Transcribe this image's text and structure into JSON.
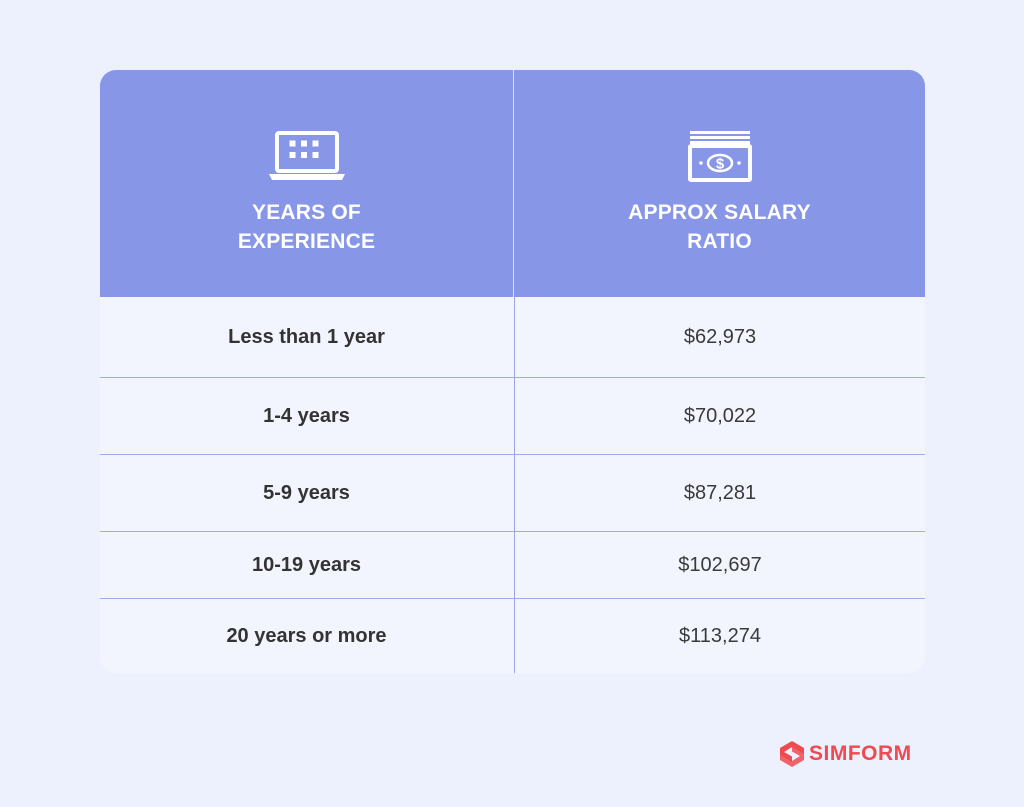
{
  "table": {
    "headers": [
      {
        "label": "YEARS OF\nEXPERIENCE",
        "icon": "laptop-icon"
      },
      {
        "label": "APPROX SALARY\nRATIO",
        "icon": "money-stack-icon"
      }
    ],
    "rows": [
      {
        "experience": "Less than 1 year",
        "salary": "$62,973"
      },
      {
        "experience": "1-4 years",
        "salary": "$70,022"
      },
      {
        "experience": "5-9 years",
        "salary": "$87,281"
      },
      {
        "experience": "10-19 years",
        "salary": "$102,697"
      },
      {
        "experience": "20 years or more",
        "salary": "$113,274"
      }
    ]
  },
  "brand": {
    "name": "SIMFORM",
    "icon": "simform-logo-icon"
  },
  "colors": {
    "background": "#edf0fd",
    "header": "#8796e6",
    "body": "#f3f5fe",
    "brand": "#ef4a4f"
  }
}
